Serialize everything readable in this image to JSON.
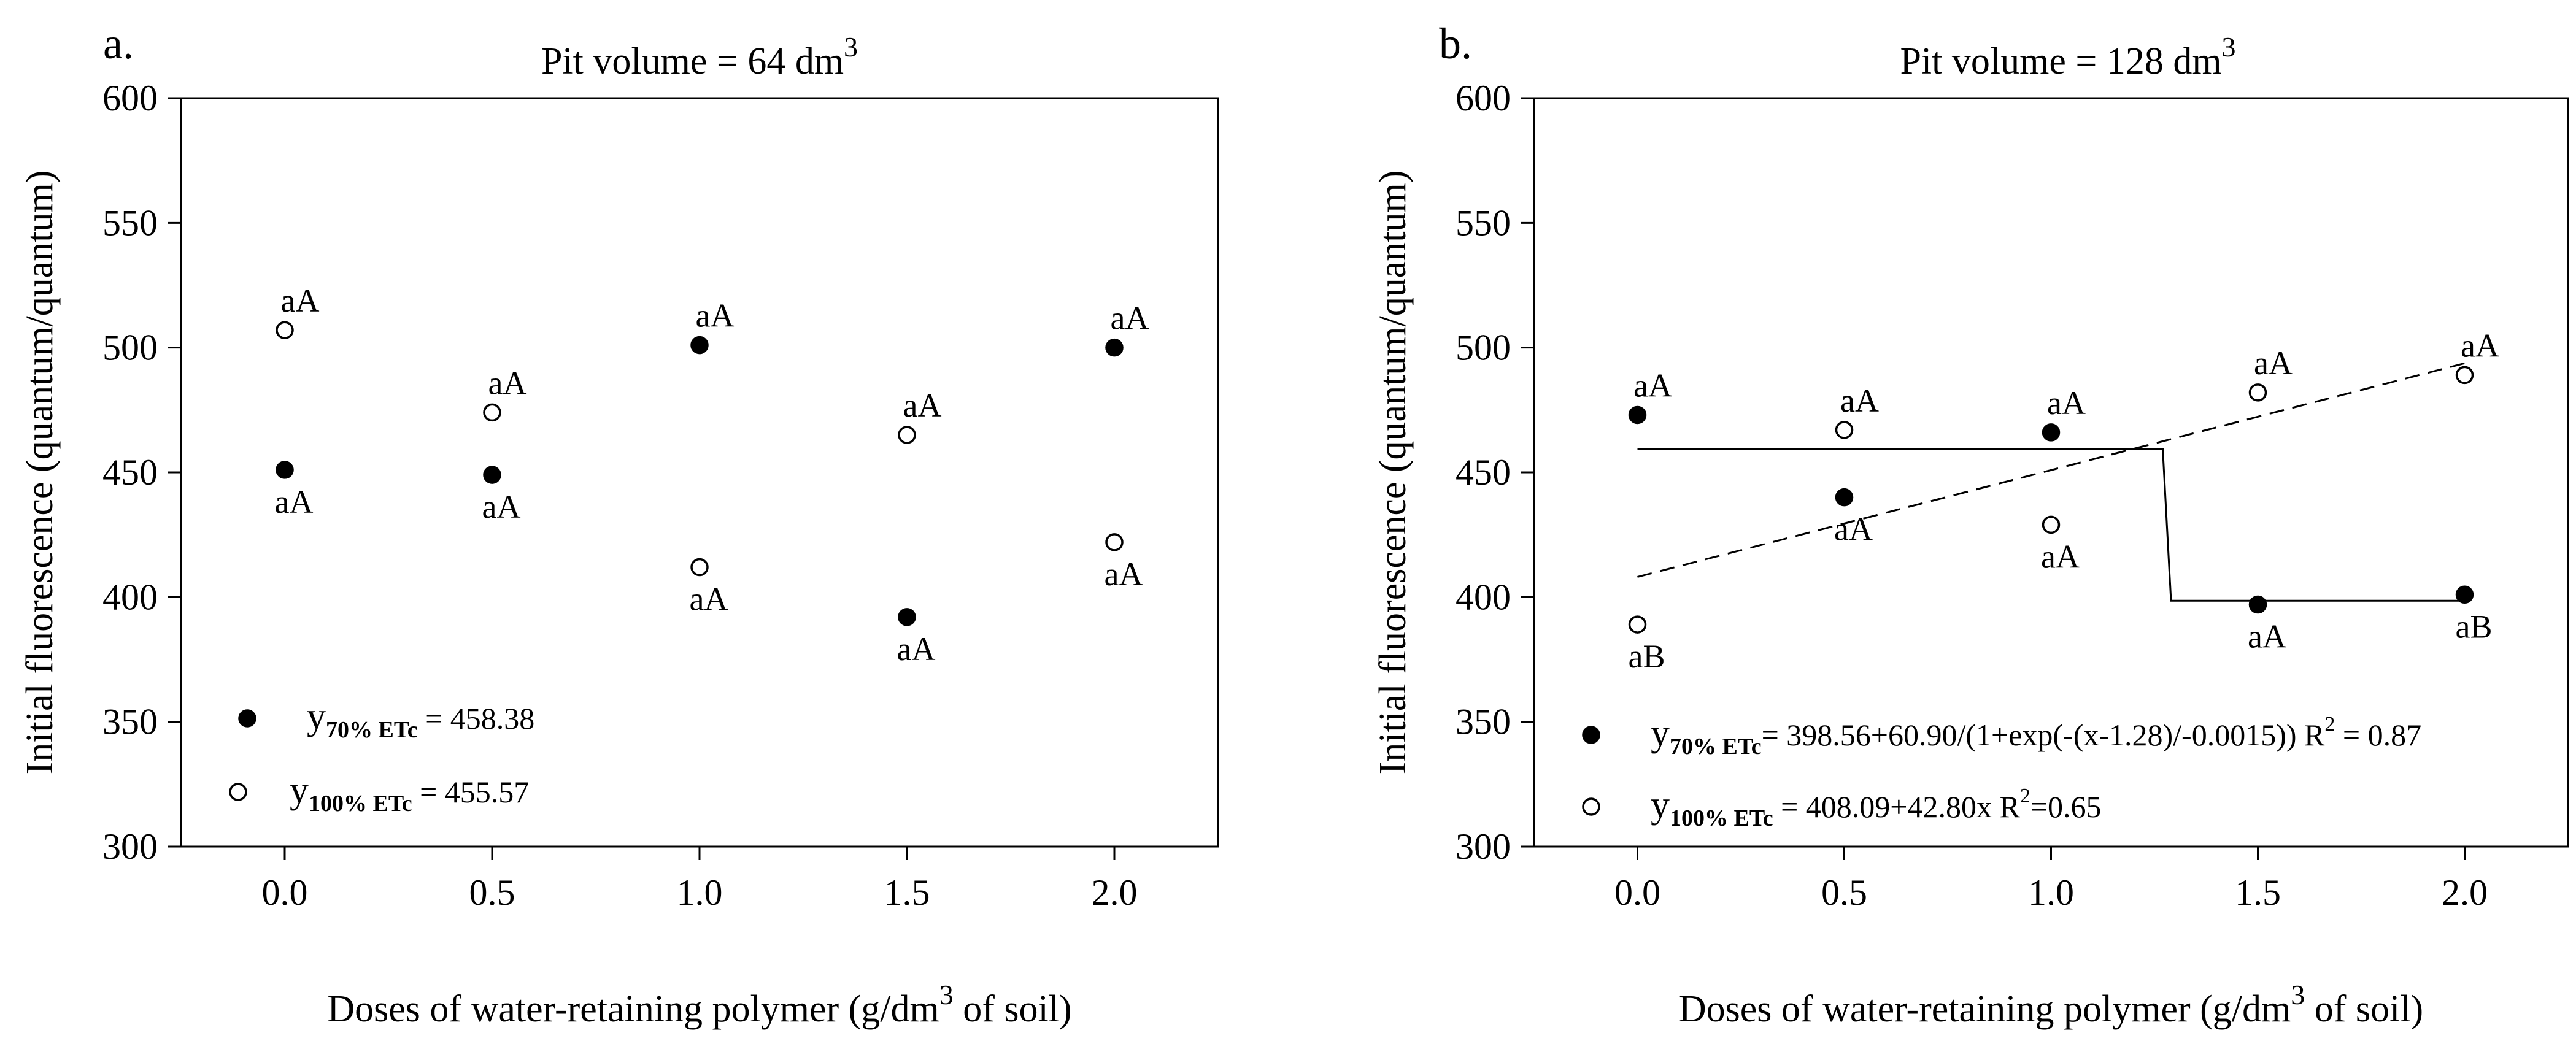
{
  "chart_data": [
    {
      "type": "scatter",
      "panel_label": "a.",
      "title": "Pit volume = 64 dm",
      "title_sup": "3",
      "xlabel": "Doses of water-retaining polymer (g/dm",
      "xlabel_sup": "3",
      "xlabel_end": " of soil)",
      "ylabel": "Initial fluorescence (quantum/quantum)",
      "xlim": [
        -0.25,
        2.25
      ],
      "ylim": [
        300,
        600
      ],
      "xticks": [
        "0.0",
        "0.5",
        "1.0",
        "1.5",
        "2.0"
      ],
      "yticks": [
        "300",
        "350",
        "400",
        "450",
        "500",
        "550",
        "600"
      ],
      "series": [
        {
          "marker": "filled",
          "x": [
            0.0,
            0.5,
            1.0,
            1.5,
            2.0
          ],
          "y": [
            451,
            449,
            501,
            392,
            500
          ],
          "labels": [
            "aA",
            "aA",
            "aA",
            "aA",
            "aA"
          ]
        },
        {
          "marker": "open",
          "x": [
            0.0,
            0.5,
            1.0,
            1.5,
            2.0
          ],
          "y": [
            507,
            474,
            412,
            465,
            422
          ],
          "labels": [
            "aA",
            "aA",
            "aA",
            "aA",
            "aA"
          ]
        }
      ],
      "legend": [
        {
          "marker": "filled",
          "y": "y",
          "sub": "70% ETc",
          "text": " = 458.38"
        },
        {
          "marker": "open",
          "y": "y",
          "sub": "100% ETc",
          "text": "  = 455.57"
        }
      ]
    },
    {
      "type": "scatter",
      "panel_label": "b.",
      "title": "Pit volume = 128 dm",
      "title_sup": "3",
      "xlabel": "Doses of water-retaining polymer (g/dm",
      "xlabel_sup": "3",
      "xlabel_end": " of soil)",
      "ylabel": "Initial fluorescence (quantum/quantum)",
      "xlim": [
        -0.25,
        2.25
      ],
      "ylim": [
        300,
        600
      ],
      "xticks": [
        "0.0",
        "0.5",
        "1.0",
        "1.5",
        "2.0"
      ],
      "yticks": [
        "300",
        "350",
        "400",
        "450",
        "500",
        "550",
        "600"
      ],
      "series": [
        {
          "marker": "filled",
          "x": [
            0.0,
            0.5,
            1.0,
            1.5,
            2.0
          ],
          "y": [
            473,
            440,
            466,
            397,
            401
          ],
          "labels": [
            "aA",
            "aA",
            "aA",
            "aA",
            "aB"
          ],
          "fit": {
            "style": "solid",
            "x": [
              0.0,
              1.27,
              1.29,
              2.0
            ],
            "y": [
              459.46,
              459.46,
              398.56,
              398.56
            ]
          }
        },
        {
          "marker": "open",
          "x": [
            0.0,
            0.5,
            1.0,
            1.5,
            2.0
          ],
          "y": [
            389,
            467,
            429,
            482,
            489
          ],
          "labels": [
            "aB",
            "aA",
            "aA",
            "aA",
            "aA"
          ],
          "fit": {
            "style": "dashed",
            "x": [
              0.0,
              2.0
            ],
            "y": [
              408.09,
              493.69
            ]
          }
        }
      ],
      "legend": [
        {
          "marker": "filled",
          "y": "y",
          "sub": "70% ETc",
          "text": "= 398.56+60.90/(1+exp(-(x-1.28)/-0.0015))",
          "r2": "R",
          "r2_sup": "2",
          "r2_val": " = 0.87"
        },
        {
          "marker": "open",
          "y": "y",
          "sub": "100% ETc",
          "text": " = 408.09+42.80x",
          "r2": "R",
          "r2_sup": "2",
          "r2_val": "=0.65"
        }
      ]
    }
  ]
}
